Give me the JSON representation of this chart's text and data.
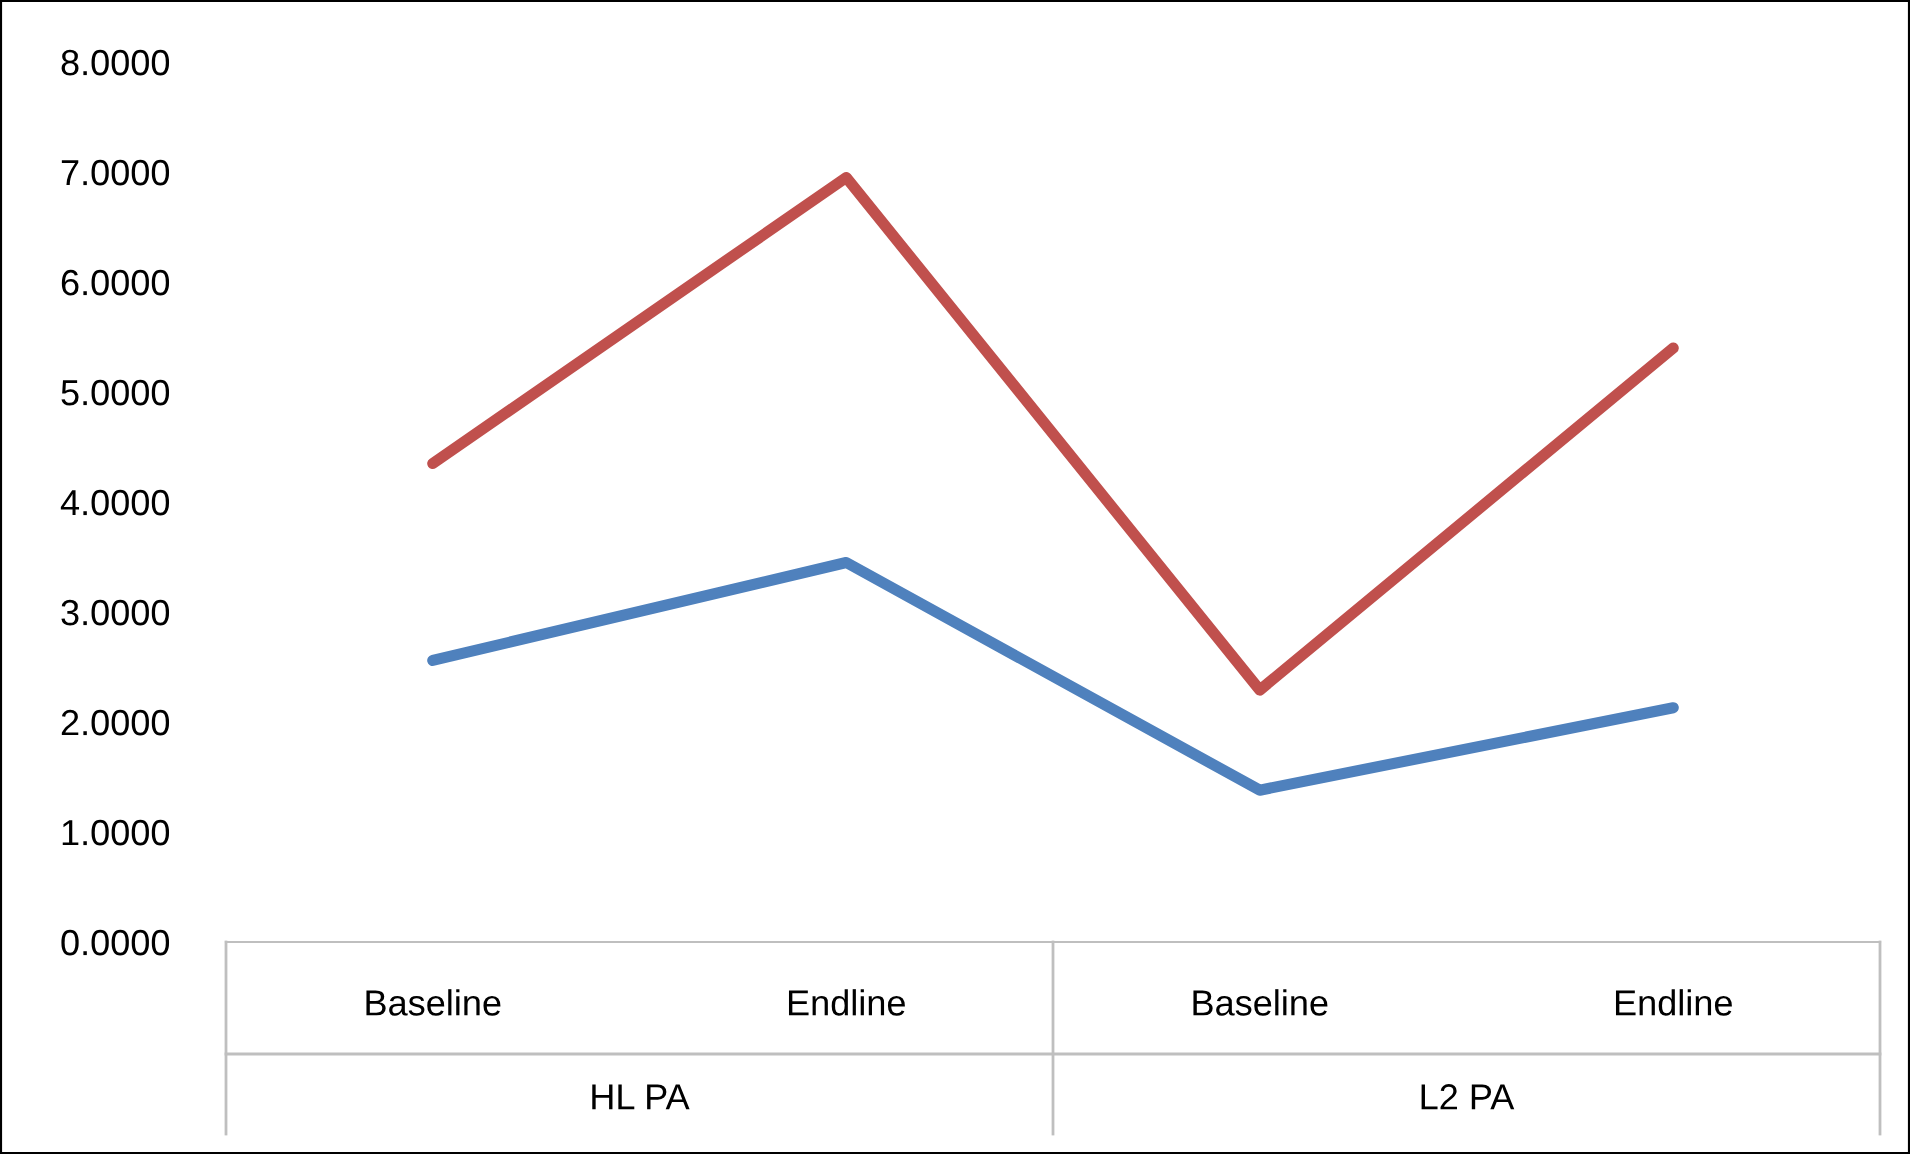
{
  "chart_data": {
    "type": "line",
    "categories": [
      "Baseline",
      "Endline",
      "Baseline",
      "Endline"
    ],
    "series": [
      {
        "color": "#4f81bd",
        "values": [
          2.56,
          3.45,
          1.38,
          2.13
        ]
      },
      {
        "color": "#c0504d",
        "values": [
          4.35,
          6.95,
          2.29,
          5.4
        ]
      }
    ],
    "ylim": [
      0,
      8
    ],
    "yticks": [
      {
        "value": 0,
        "label": "0.0000"
      },
      {
        "value": 1,
        "label": "1.0000"
      },
      {
        "value": 2,
        "label": "2.0000"
      },
      {
        "value": 3,
        "label": "3.0000"
      },
      {
        "value": 4,
        "label": "4.0000"
      },
      {
        "value": 5,
        "label": "5.0000"
      },
      {
        "value": 6,
        "label": "6.0000"
      },
      {
        "value": 7,
        "label": "7.0000"
      },
      {
        "value": 8,
        "label": "8.0000"
      }
    ],
    "annotations": [
      "HL PA",
      "L2 PA"
    ],
    "grid": false,
    "legend": false,
    "marker": "none",
    "line_style": "solid"
  }
}
